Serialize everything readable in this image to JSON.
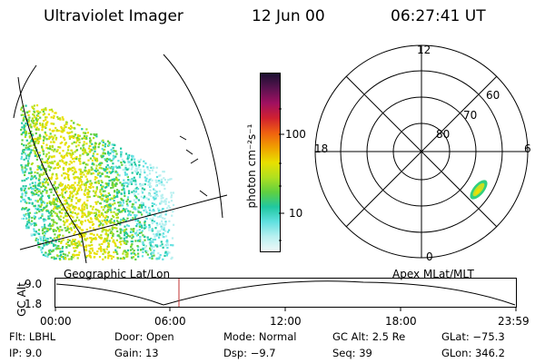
{
  "header": {
    "title": "Ultraviolet Imager",
    "date": "12 Jun 00",
    "time": "06:27:41 UT"
  },
  "colorbar": {
    "label": "photon cm⁻²s⁻¹",
    "ticks": [
      "100",
      "10"
    ],
    "colors": [
      "#1a1030",
      "#5a1250",
      "#a01060",
      "#d02030",
      "#f06010",
      "#f0a000",
      "#e8e000",
      "#b0e020",
      "#60d040",
      "#20c8a0",
      "#60e0e0",
      "#b8f0f0",
      "#f0f8f8"
    ]
  },
  "left_panel": {
    "label": "Geographic Lat/Lon"
  },
  "right_panel": {
    "label": "Apex MLat/MLT",
    "mlt_labels": {
      "top": "12",
      "left": "18",
      "right": "6",
      "bottom": "0"
    },
    "lat_labels": [
      "60",
      "70",
      "80"
    ]
  },
  "timeline": {
    "ylabel": "GC Alt",
    "y_ticks": [
      "9.0",
      "1.8"
    ],
    "x_ticks": [
      "00:00",
      "06:00",
      "12:00",
      "18:00",
      "23:59"
    ]
  },
  "info": {
    "row1": [
      {
        "label": "Flt:",
        "value": "LBHL"
      },
      {
        "label": "Door:",
        "value": "Open"
      },
      {
        "label": "Mode:",
        "value": "Normal"
      },
      {
        "label": "GC Alt:",
        "value": "2.5 Re"
      },
      {
        "label": "GLat:",
        "value": "−75.3"
      }
    ],
    "row2": [
      {
        "label": "IP:",
        "value": "9.0"
      },
      {
        "label": "Gain:",
        "value": "13"
      },
      {
        "label": "Dsp:",
        "value": "−9.7"
      },
      {
        "label": "Seq:",
        "value": "39"
      },
      {
        "label": "GLon:",
        "value": "346.2"
      }
    ]
  }
}
